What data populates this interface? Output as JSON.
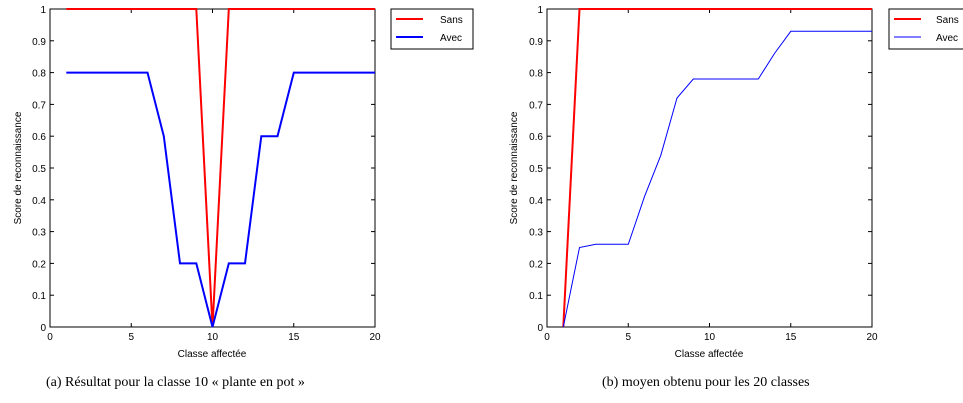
{
  "chart_data": [
    {
      "type": "line",
      "xlabel": "Classe affectée",
      "ylabel": "Score de reconnaissance",
      "xlim": [
        0,
        20
      ],
      "ylim": [
        0,
        1
      ],
      "xticks": [
        "0",
        "5",
        "10",
        "15",
        "20"
      ],
      "yticks": [
        "0",
        "0.1",
        "0.2",
        "0.3",
        "0.4",
        "0.5",
        "0.6",
        "0.7",
        "0.8",
        "0.9",
        "1"
      ],
      "legend_position": "top-right",
      "caption": "(a)  Résultat pour la classe 10 « plante en pot »",
      "series": [
        {
          "name": "Sans",
          "color": "#ff0000",
          "x": [
            1,
            2,
            3,
            4,
            5,
            6,
            7,
            8,
            9,
            10,
            11,
            12,
            13,
            14,
            15,
            16,
            17,
            18,
            19,
            20
          ],
          "y": [
            1,
            1,
            1,
            1,
            1,
            1,
            1,
            1,
            1,
            0,
            1,
            1,
            1,
            1,
            1,
            1,
            1,
            1,
            1,
            1
          ]
        },
        {
          "name": "Avec",
          "color": "#0000ff",
          "x": [
            1,
            2,
            3,
            4,
            5,
            6,
            7,
            8,
            9,
            10,
            11,
            12,
            13,
            14,
            15,
            16,
            17,
            18,
            19,
            20
          ],
          "y": [
            0.8,
            0.8,
            0.8,
            0.8,
            0.8,
            0.8,
            0.6,
            0.2,
            0.2,
            0,
            0.2,
            0.2,
            0.6,
            0.6,
            0.8,
            0.8,
            0.8,
            0.8,
            0.8,
            0.8
          ]
        }
      ]
    },
    {
      "type": "line",
      "xlabel": "Classe affectée",
      "ylabel": "Score de reconnaissance",
      "xlim": [
        0,
        20
      ],
      "ylim": [
        0,
        1
      ],
      "xticks": [
        "0",
        "5",
        "10",
        "15",
        "20"
      ],
      "yticks": [
        "0",
        "0.1",
        "0.2",
        "0.3",
        "0.4",
        "0.5",
        "0.6",
        "0.7",
        "0.8",
        "0.9",
        "1"
      ],
      "legend_position": "top-right",
      "caption": "(b)  moyen obtenu pour les 20 classes",
      "series": [
        {
          "name": "Sans",
          "color": "#ff0000",
          "x": [
            1,
            2,
            3,
            4,
            5,
            6,
            7,
            8,
            9,
            10,
            11,
            12,
            13,
            14,
            15,
            16,
            17,
            18,
            19,
            20
          ],
          "y": [
            0,
            1,
            1,
            1,
            1,
            1,
            1,
            1,
            1,
            1,
            1,
            1,
            1,
            1,
            1,
            1,
            1,
            1,
            1,
            1
          ]
        },
        {
          "name": "Avec",
          "color": "#0000ff",
          "x": [
            1,
            2,
            3,
            4,
            5,
            6,
            7,
            8,
            9,
            10,
            11,
            12,
            13,
            14,
            15,
            16,
            17,
            18,
            19,
            20
          ],
          "y": [
            0,
            0.25,
            0.26,
            0.26,
            0.26,
            0.41,
            0.54,
            0.72,
            0.78,
            0.78,
            0.78,
            0.78,
            0.78,
            0.86,
            0.93,
            0.93,
            0.93,
            0.93,
            0.93,
            0.93
          ]
        }
      ]
    }
  ]
}
